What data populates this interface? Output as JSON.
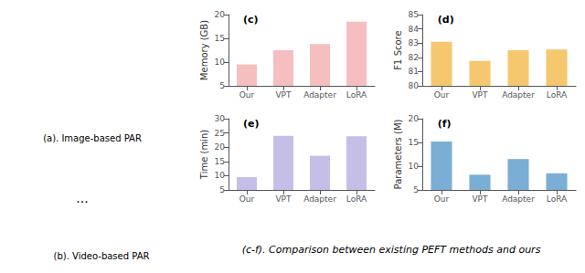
{
  "chart_data": [
    {
      "type": "bar",
      "title": "(c)",
      "categories": [
        "Our",
        "VPT",
        "Adapter",
        "LoRA"
      ],
      "values": [
        9.5,
        12.5,
        13.8,
        18.5
      ],
      "color": "#f5bfbf",
      "ylabel": "Memory (GB)",
      "ylim": [
        5,
        20
      ],
      "yticks": [
        5,
        10,
        15,
        20
      ],
      "grid": false
    },
    {
      "type": "bar",
      "title": "(d)",
      "categories": [
        "Our",
        "VPT",
        "Adapter",
        "LoRA"
      ],
      "values": [
        83.1,
        81.75,
        82.5,
        82.55
      ],
      "color": "#f5c870",
      "ylabel": "F1 Score",
      "ylim": [
        80,
        85
      ],
      "yticks": [
        80,
        81,
        82,
        83,
        84,
        85
      ],
      "grid": false
    },
    {
      "type": "bar",
      "title": "(e)",
      "categories": [
        "Our",
        "VPT",
        "Adapter",
        "LoRA"
      ],
      "values": [
        9.5,
        24.0,
        17.0,
        23.8
      ],
      "color": "#c5bfe8",
      "ylabel": "Time (min)",
      "ylim": [
        5,
        30
      ],
      "yticks": [
        5,
        10,
        15,
        20,
        25,
        30
      ],
      "grid": false
    },
    {
      "type": "bar",
      "title": "(f)",
      "categories": [
        "Our",
        "VPT",
        "Adapter",
        "LoRA"
      ],
      "values": [
        15.2,
        8.2,
        11.5,
        8.5
      ],
      "color": "#7aaed4",
      "ylabel": "Parameters (M)",
      "ylim": [
        5,
        20
      ],
      "yticks": [
        5,
        10,
        15,
        20
      ],
      "grid": false
    }
  ],
  "caption": "(c-f). Comparison between existing PEFT methods and ours",
  "annotations": [
    "(a). Image-based PAR",
    "...",
    "(b). Video-based PAR"
  ]
}
